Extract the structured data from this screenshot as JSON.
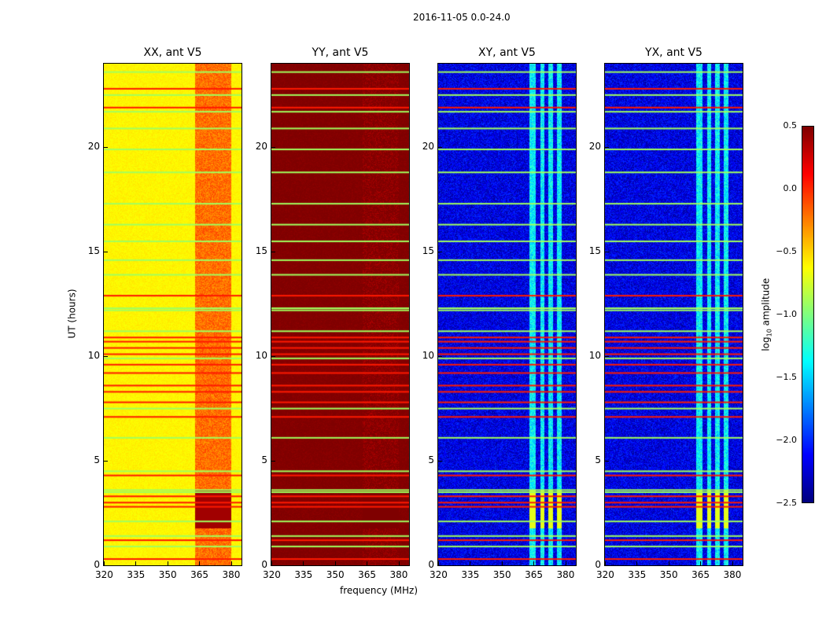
{
  "chart_data": {
    "type": "heatmap",
    "title": "2016-11-05 0.0-24.0",
    "xlabel": "frequency (MHz)",
    "ylabel": "UT (hours)",
    "xlim": [
      320,
      385
    ],
    "ylim": [
      0,
      24
    ],
    "xticks": [
      "320",
      "335",
      "350",
      "365",
      "380"
    ],
    "yticks": [
      "0",
      "5",
      "10",
      "15",
      "20"
    ],
    "panels": [
      {
        "title": "XX, ant V5",
        "base": -0.6,
        "band_value": -0.2,
        "low_block_value": 0.4
      },
      {
        "title": "YY, ant V5",
        "base": 0.5,
        "band_value": 0.5,
        "low_block_value": 0.5
      },
      {
        "title": "XY, ant V5",
        "base": -2.2,
        "band_value": -1.4,
        "low_block_value": -0.7
      },
      {
        "title": "YX, ant V5",
        "base": -2.2,
        "band_value": -1.4,
        "low_block_value": -0.7
      }
    ],
    "rfi_bands_mhz": [
      [
        363,
        366
      ],
      [
        368,
        370
      ],
      [
        372,
        374
      ],
      [
        376,
        378
      ]
    ],
    "flag_rows_green_hours": [
      0.9,
      1.4,
      2.1,
      3.5,
      3.6,
      4.5,
      6.1,
      7.5,
      9.9,
      11.2,
      12.2,
      12.3,
      13.9,
      14.6,
      15.5,
      16.3,
      17.3,
      18.8,
      19.9,
      20.9,
      21.7,
      22.5,
      23.6
    ],
    "flag_rows_orange_hours": [
      0.3,
      1.2,
      2.8,
      3.0,
      3.3,
      4.3,
      7.1,
      7.8,
      8.3,
      8.6,
      9.2,
      9.6,
      10.1,
      10.4,
      10.7,
      10.9,
      12.9,
      21.9,
      22.8
    ],
    "colorbar": {
      "label": "log10 amplitude",
      "label_base": "log",
      "label_sub": "10",
      "label_rest": " amplitude",
      "range": [
        -2.5,
        0.5
      ],
      "ticks": [
        "0.5",
        "0.0",
        "−0.5",
        "−1.0",
        "−1.5",
        "−2.0",
        "−2.5"
      ],
      "colormap": "jet"
    }
  }
}
